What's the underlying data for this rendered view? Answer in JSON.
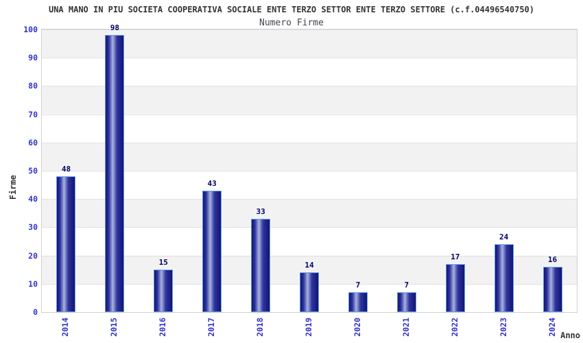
{
  "header": {
    "title": "UNA MANO IN PIU SOCIETA COOPERATIVA SOCIALE ENTE TERZO SETTOR ENTE TERZO SETTORE (c.f.04496540750)",
    "subtitle": "Numero Firme"
  },
  "chart_data": {
    "type": "bar",
    "title": "UNA MANO IN PIU SOCIETA COOPERATIVA SOCIALE ENTE TERZO SETTOR ENTE TERZO SETTORE (c.f.04496540750)",
    "subtitle": "Numero Firme",
    "categories": [
      "2014",
      "2015",
      "2016",
      "2017",
      "2018",
      "2019",
      "2020",
      "2021",
      "2022",
      "2023",
      "2024"
    ],
    "values": [
      48,
      98,
      15,
      43,
      33,
      14,
      7,
      7,
      17,
      24,
      16
    ],
    "xlabel": "Anno",
    "ylabel": "Firme",
    "ylim": [
      0,
      100
    ],
    "yticks": [
      0,
      10,
      20,
      30,
      40,
      50,
      60,
      70,
      80,
      90,
      100
    ],
    "grid": "horizontal alternating bands every 10 units, gridline at each tick",
    "legend": "none",
    "value_labels": "above each bar",
    "colors": {
      "band_fill": "#f2f2f2",
      "band_alt_fill": "#ffffff",
      "gridline": "#e2e2e2",
      "plot_border": "#d0d0d0",
      "bar_edge_dark": "#14146e",
      "bar_center_light": "#aab2de",
      "bar_border": "#5f9fe8",
      "tick_label": "#3333cc",
      "value_label": "#000066",
      "title_text": "#333333"
    }
  }
}
